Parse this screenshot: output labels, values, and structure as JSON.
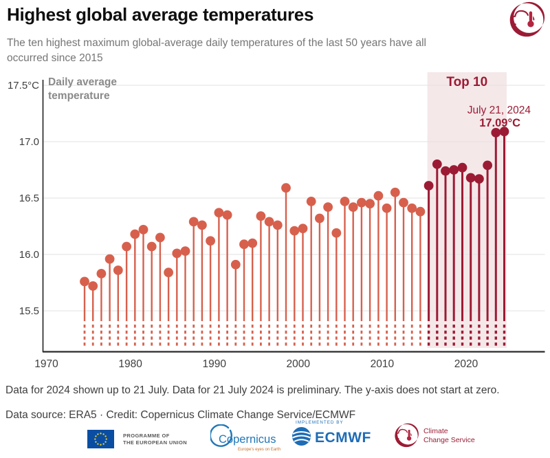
{
  "header": {
    "title": "Highest global average temperatures",
    "subtitle": "The ten highest maximum global-average daily temperatures of the last 50 years have all occurred since 2015",
    "logo_name": "copernicus-climate-change-service-emblem"
  },
  "chart_data": {
    "type": "bar",
    "style": "lollipop",
    "title": "Highest global average temperatures",
    "ylabel_lines": [
      "Daily average",
      "temperature"
    ],
    "unit": "°C",
    "years": [
      1974,
      1975,
      1976,
      1977,
      1978,
      1979,
      1980,
      1981,
      1982,
      1983,
      1984,
      1985,
      1986,
      1987,
      1988,
      1989,
      1990,
      1991,
      1992,
      1993,
      1994,
      1995,
      1996,
      1997,
      1998,
      1999,
      2000,
      2001,
      2002,
      2003,
      2004,
      2005,
      2006,
      2007,
      2008,
      2009,
      2010,
      2011,
      2012,
      2013,
      2014,
      2015,
      2016,
      2017,
      2018,
      2019,
      2020,
      2021,
      2022,
      2023,
      2024
    ],
    "values": [
      15.76,
      15.72,
      15.83,
      15.96,
      15.86,
      16.07,
      16.18,
      16.22,
      16.07,
      16.15,
      15.84,
      16.01,
      16.03,
      16.29,
      16.26,
      16.12,
      16.37,
      16.35,
      15.91,
      16.09,
      16.1,
      16.34,
      16.29,
      16.26,
      16.59,
      16.21,
      16.23,
      16.47,
      16.32,
      16.42,
      16.19,
      16.47,
      16.42,
      16.46,
      16.45,
      16.52,
      16.41,
      16.55,
      16.46,
      16.41,
      16.38,
      16.61,
      16.8,
      16.74,
      16.75,
      16.77,
      16.68,
      16.67,
      16.79,
      17.08,
      17.09
    ],
    "yticks": [
      17.5,
      17.0,
      16.5,
      16.0,
      15.5
    ],
    "ytick_labels": [
      "17.5°C",
      "17.0",
      "16.5",
      "16.0",
      "15.5"
    ],
    "xticks": [
      1970,
      1980,
      1990,
      2000,
      2010,
      2020
    ],
    "ylim_note": "y-axis broken, does not start at zero",
    "grid": "horizontal",
    "highlight": {
      "label": "Top 10",
      "from_year": 2015,
      "to_year": 2024,
      "annotation_date": "July 21, 2024",
      "annotation_value": "17.09°C"
    },
    "colors": {
      "regular": "#d7604d",
      "top10": "#9c1b34",
      "highlight_bg": "#f5e8e9",
      "gridline": "#e2e2e2",
      "axis": "#2b2b2b",
      "tick_text": "#3d3d3d",
      "ylabel_text": "#8a8a8a"
    }
  },
  "footer": {
    "note1": "Data for 2024 shown up to 21 July. Data for 21 July 2024 is preliminary. The y-axis does not start at zero.",
    "note2": "Data source: ERA5 · Credit: Copernicus Climate Change Service/ECMWF",
    "logos": {
      "eu": {
        "line1": "PROGRAMME OF",
        "line2": "THE EUROPEAN UNION"
      },
      "copernicus": {
        "name": "Copernicus",
        "tagline": "Europe's eyes on Earth"
      },
      "ecmwf": {
        "implemented_by": "IMPLEMENTED BY",
        "name": "ECMWF"
      },
      "c3s": {
        "line1": "Climate",
        "line2": "Change Service"
      }
    }
  }
}
